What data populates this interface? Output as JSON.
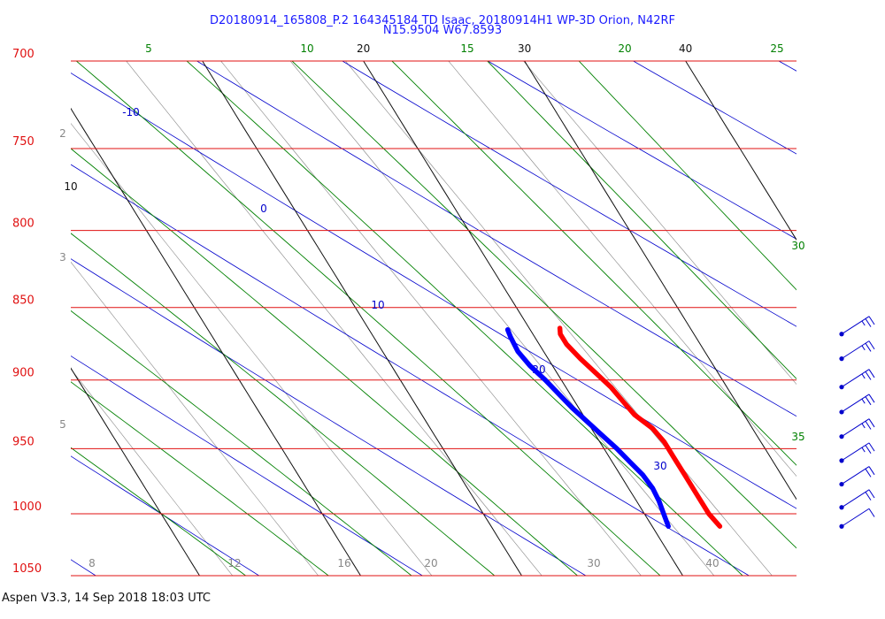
{
  "header": {
    "line1": "D20180914_165808_P.2 164345184 TD Isaac, 20180914H1 WP-3D Orion, N42RF",
    "line2": "N15.9504 W67.8593"
  },
  "footer": {
    "text": "Aspen V3.3, 14 Sep 2018  18:03 UTC"
  },
  "chart_data": {
    "type": "line",
    "title": "D20180914_165808_P.2 164345184 TD Isaac, 20180914H1 WP-3D Orion, N42RF",
    "ylabel": "",
    "y_scale": "log (pressure)",
    "pressure_levels_hPa": [
      700,
      750,
      800,
      850,
      900,
      950,
      1000,
      1050
    ],
    "ylim_hPa": [
      1050,
      700
    ],
    "colors": {
      "isobar": "#e01010",
      "isotherm": "#111111",
      "dry_adiabat": "#0000cc",
      "moist_adiabat": "#008000",
      "mixing_ratio": "#888888",
      "temperature": "#ff0000",
      "dewpoint": "#0000ff",
      "wind_barb": "#0000cc"
    },
    "isotherms_C": [
      10,
      20,
      30,
      40
    ],
    "isotherm_labels_top": [
      "20",
      "30",
      "40"
    ],
    "isotherm_labels_left": [
      "10"
    ],
    "dry_adiabat_labels": [
      "-10",
      "0",
      "10",
      "20",
      "30"
    ],
    "moist_adiabat_labels_top": [
      "5",
      "10",
      "15",
      "20",
      "25"
    ],
    "moist_adiabat_labels_right": [
      "30",
      "35"
    ],
    "mixing_ratio_labels_bottom": [
      "8",
      "12",
      "16",
      "20",
      "30",
      "40"
    ],
    "mixing_ratio_labels_left": [
      "2",
      "3",
      "5"
    ],
    "series": [
      {
        "name": "Temperature",
        "points": [
          [
            1010,
            24.2
          ],
          [
            1000,
            24.0
          ],
          [
            985,
            24.0
          ],
          [
            970,
            24.0
          ],
          [
            955,
            24.0
          ],
          [
            945,
            24.0
          ],
          [
            935,
            23.8
          ],
          [
            925,
            23.2
          ],
          [
            915,
            23.0
          ],
          [
            905,
            22.8
          ],
          [
            895,
            22.4
          ],
          [
            885,
            22.0
          ],
          [
            875,
            21.7
          ],
          [
            868,
            21.7
          ],
          [
            864,
            21.9
          ]
        ]
      },
      {
        "name": "Dewpoint",
        "points": [
          [
            1010,
            21.0
          ],
          [
            1000,
            21.2
          ],
          [
            990,
            21.4
          ],
          [
            980,
            21.5
          ],
          [
            970,
            21.4
          ],
          [
            960,
            21.1
          ],
          [
            950,
            20.8
          ],
          [
            940,
            20.4
          ],
          [
            930,
            20.0
          ],
          [
            920,
            19.6
          ],
          [
            910,
            19.3
          ],
          [
            900,
            19.0
          ],
          [
            890,
            18.6
          ],
          [
            880,
            18.4
          ],
          [
            870,
            18.5
          ],
          [
            865,
            18.6
          ]
        ]
      }
    ],
    "wind_barbs": [
      {
        "pressure_hPa": 868,
        "barbs": [
          "full",
          "full",
          "half"
        ]
      },
      {
        "pressure_hPa": 885,
        "barbs": [
          "full",
          "full",
          "half"
        ]
      },
      {
        "pressure_hPa": 905,
        "barbs": [
          "full",
          "full",
          "half"
        ]
      },
      {
        "pressure_hPa": 923,
        "barbs": [
          "full",
          "full",
          "half"
        ]
      },
      {
        "pressure_hPa": 941,
        "barbs": [
          "full",
          "full",
          "half"
        ]
      },
      {
        "pressure_hPa": 959,
        "barbs": [
          "full",
          "full",
          "half"
        ]
      },
      {
        "pressure_hPa": 977,
        "barbs": [
          "full",
          "full"
        ]
      },
      {
        "pressure_hPa": 995,
        "barbs": [
          "full",
          "full"
        ]
      },
      {
        "pressure_hPa": 1010,
        "barbs": [
          "full"
        ]
      }
    ]
  }
}
